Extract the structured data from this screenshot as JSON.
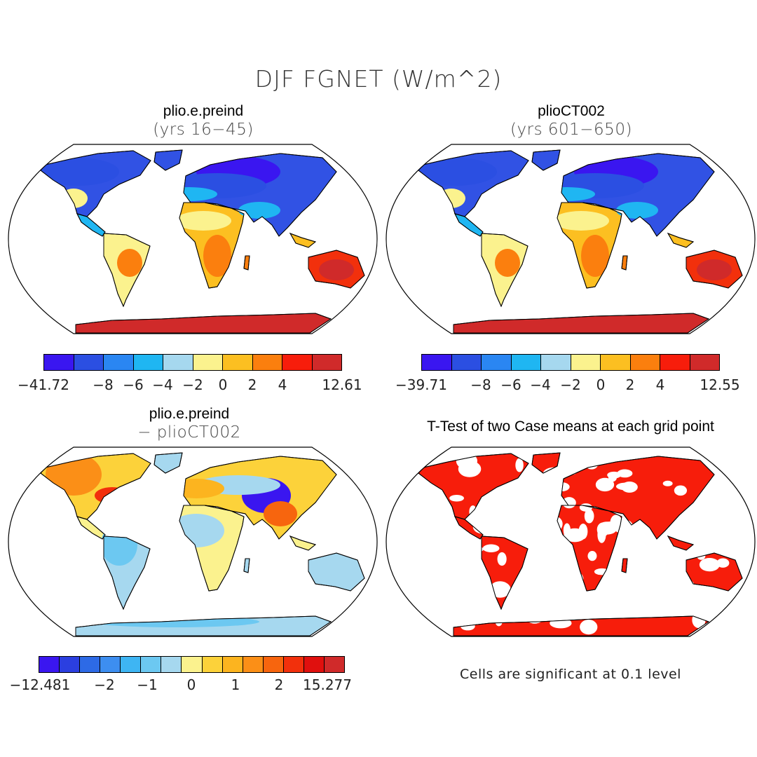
{
  "title": "DJF FGNET (W/m^2)",
  "panels": {
    "top_left": {
      "title": "plio.e.preind",
      "subtitle": "(yrs 16−45)"
    },
    "top_right": {
      "title": "plioCT002",
      "subtitle": "(yrs 601−650)"
    },
    "bottom_left": {
      "title": "plio.e.preind",
      "subtitle": "− plioCT002"
    },
    "bottom_right": {
      "title": "T-Test of two Case means at each grid point",
      "note": "Cells are significant at 0.1 level"
    }
  },
  "colorbars": {
    "top_left": {
      "colors": [
        "#3a16f0",
        "#2b4fe2",
        "#2a86f2",
        "#1fb6f2",
        "#a6d8ef",
        "#fbf28e",
        "#fcbf21",
        "#fb7f0e",
        "#f71d0b",
        "#d02a2a"
      ],
      "labels": [
        "−41.72",
        "−8",
        "−6",
        "−4",
        "−2",
        "0",
        "2",
        "4",
        "12.61"
      ]
    },
    "top_right": {
      "colors": [
        "#3a16f0",
        "#2b4fe2",
        "#2a86f2",
        "#1fb6f2",
        "#a6d8ef",
        "#fbf28e",
        "#fcbf21",
        "#fb7f0e",
        "#f71d0b",
        "#d02a2a"
      ],
      "labels": [
        "−39.71",
        "−8",
        "−6",
        "−4",
        "−2",
        "0",
        "2",
        "4",
        "12.55"
      ]
    },
    "bottom_left": {
      "colors": [
        "#3a16f0",
        "#2b3fe0",
        "#2d6ae6",
        "#3d8ef0",
        "#3eb5f3",
        "#6cc8f1",
        "#a6d8ef",
        "#fbf28e",
        "#fcd23a",
        "#fcb41f",
        "#fb8f17",
        "#f7650e",
        "#f2300c",
        "#e0100e",
        "#d02a2a"
      ],
      "labels": [
        "−12.481",
        "−2",
        "−1",
        "0",
        "1",
        "2",
        "15.277"
      ]
    }
  }
}
